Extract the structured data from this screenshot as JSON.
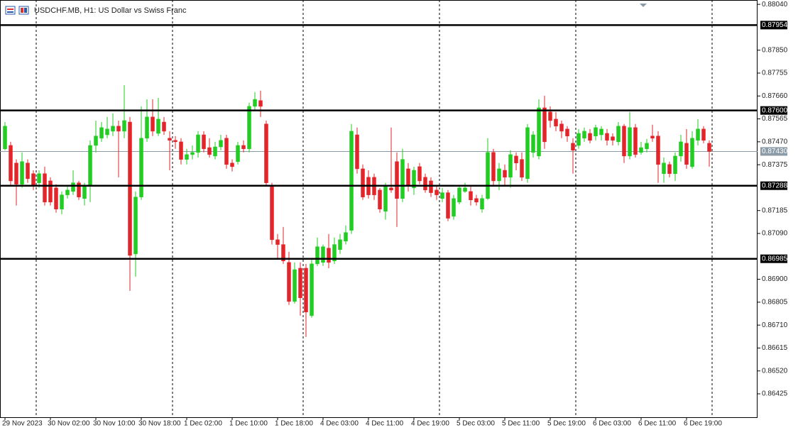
{
  "chart_data": {
    "type": "candlestick",
    "title": "USDCHF.MB, H1:  US Dollar vs Swiss Franc",
    "categories": [
      "29 Nov 2023",
      null,
      null,
      null,
      null,
      null,
      null,
      null,
      "30 Nov 02:00",
      null,
      null,
      null,
      null,
      null,
      null,
      null,
      "30 Nov 10:00",
      null,
      null,
      null,
      null,
      null,
      null,
      null,
      "30 Nov 18:00",
      null,
      null,
      null,
      null,
      null,
      null,
      null,
      "1 Dec 02:00",
      null,
      null,
      null,
      null,
      null,
      null,
      null,
      "1 Dec 10:00",
      null,
      null,
      null,
      null,
      null,
      null,
      null,
      "1 Dec 18:00",
      null,
      null,
      null,
      null,
      null,
      null,
      null,
      "4 Dec 03:00",
      null,
      null,
      null,
      null,
      null,
      null,
      null,
      "4 Dec 11:00",
      null,
      null,
      null,
      null,
      null,
      null,
      null,
      "4 Dec 19:00",
      null,
      null,
      null,
      null,
      null,
      null,
      null,
      "5 Dec 03:00",
      null,
      null,
      null,
      null,
      null,
      null,
      null,
      "5 Dec 11:00",
      null,
      null,
      null,
      null,
      null,
      null,
      null,
      "5 Dec 19:00",
      null,
      null,
      null,
      null,
      null,
      null,
      null,
      "6 Dec 03:00",
      null,
      null,
      null,
      null,
      null,
      null,
      null,
      "6 Dec 11:00",
      null,
      null,
      null,
      null,
      null,
      null,
      null,
      "6 Dec 19:00",
      null,
      null,
      null,
      null
    ],
    "open": [
      0.87441,
      0.87455,
      0.87382,
      0.87294,
      0.87382,
      0.87338,
      0.873,
      0.87338,
      0.87308,
      0.87279,
      0.87191,
      0.8725,
      0.87264,
      0.873,
      0.87235,
      0.87288,
      0.87455,
      0.87485,
      0.87499,
      0.87514,
      0.87535,
      0.87514,
      0.87552,
      0.87005,
      0.87241,
      0.87485,
      0.87573,
      0.87505,
      0.87552,
      0.87485,
      0.87476,
      0.8747,
      0.87397,
      0.87417,
      0.87426,
      0.87499,
      0.87446,
      0.87411,
      0.87449,
      0.87485,
      0.87382,
      0.87388,
      0.87455,
      0.87441,
      0.87617,
      0.87641,
      0.87544,
      0.87288,
      0.87064,
      0.87044,
      0.8697,
      0.86808,
      0.86946,
      0.86946,
      0.86749,
      0.86964,
      0.8697,
      0.87029,
      0.86976,
      0.87023,
      0.87058,
      0.87103,
      0.87499,
      0.87358,
      0.87323,
      0.87323,
      0.8727,
      0.87182,
      0.87279,
      0.87388,
      0.87235,
      0.87358,
      0.87279,
      0.87367,
      0.87323,
      0.87308,
      0.8727,
      0.87235,
      0.87259,
      0.87161,
      0.8722,
      0.87264,
      0.87264,
      0.87235,
      0.87191,
      0.87235,
      0.87426,
      0.87308,
      0.87352,
      0.87323,
      0.87411,
      0.87397,
      0.87317,
      0.87426,
      0.87411,
      0.87611,
      0.87594,
      0.87564,
      0.87544,
      0.87523,
      0.87464,
      0.87455,
      0.87485,
      0.87505,
      0.87494,
      0.87499,
      0.87505,
      0.87491,
      0.8747,
      0.87535,
      0.87411,
      0.87529,
      0.87426,
      0.87441,
      0.87494,
      0.87494,
      0.87338,
      0.87376,
      0.87338,
      0.87411,
      0.87464,
      0.87367,
      0.87476,
      0.87523,
      0.87464
    ],
    "high": [
      0.87552,
      0.8747,
      0.87397,
      0.87426,
      0.87397,
      0.87352,
      0.87352,
      0.87367,
      0.87323,
      0.87294,
      0.87264,
      0.87288,
      0.87352,
      0.87308,
      0.873,
      0.87476,
      0.87558,
      0.87552,
      0.87573,
      0.87588,
      0.87558,
      0.87705,
      0.87573,
      0.87264,
      0.87617,
      0.87646,
      0.87646,
      0.87652,
      0.87573,
      0.87514,
      0.87494,
      0.87485,
      0.87441,
      0.87455,
      0.87514,
      0.87514,
      0.87485,
      0.8747,
      0.87499,
      0.87499,
      0.87397,
      0.8747,
      0.87476,
      0.87632,
      0.87676,
      0.87682,
      0.87558,
      0.873,
      0.87088,
      0.87117,
      0.87014,
      0.8697,
      0.8697,
      0.86964,
      0.86985,
      0.87073,
      0.87044,
      0.87088,
      0.87073,
      0.87088,
      0.87123,
      0.87544,
      0.87529,
      0.87376,
      0.87352,
      0.87338,
      0.87279,
      0.873,
      0.87529,
      0.87426,
      0.87441,
      0.87382,
      0.87367,
      0.87382,
      0.87338,
      0.87323,
      0.87288,
      0.87279,
      0.8727,
      0.8725,
      0.87288,
      0.873,
      0.87288,
      0.8725,
      0.8725,
      0.87485,
      0.87441,
      0.87382,
      0.87376,
      0.87435,
      0.87426,
      0.87426,
      0.87544,
      0.87514,
      0.87646,
      0.87661,
      0.87617,
      0.87594,
      0.87558,
      0.87535,
      0.87485,
      0.87523,
      0.87529,
      0.87523,
      0.87541,
      0.87535,
      0.87523,
      0.87505,
      0.87552,
      0.87544,
      0.87594,
      0.87544,
      0.8747,
      0.87482,
      0.87541,
      0.87514,
      0.87405,
      0.87388,
      0.87426,
      0.87499,
      0.87523,
      0.87514,
      0.87564,
      0.87535,
      0.87476
    ],
    "low": [
      0.87435,
      0.87288,
      0.87206,
      0.87279,
      0.873,
      0.8727,
      0.87279,
      0.87206,
      0.87206,
      0.87176,
      0.8717,
      0.87235,
      0.8725,
      0.87229,
      0.87206,
      0.8722,
      0.87426,
      0.8747,
      0.87485,
      0.87494,
      0.87323,
      0.87485,
      0.86852,
      0.86911,
      0.87229,
      0.8747,
      0.87494,
      0.87494,
      0.87499,
      0.87352,
      0.87441,
      0.87376,
      0.87376,
      0.87397,
      0.87405,
      0.87426,
      0.87405,
      0.87397,
      0.87435,
      0.87358,
      0.87347,
      0.87376,
      0.87426,
      0.87426,
      0.87602,
      0.87573,
      0.87288,
      0.87044,
      0.86985,
      0.86964,
      0.86794,
      0.86799,
      0.86749,
      0.86661,
      0.86741,
      0.86955,
      0.86955,
      0.86946,
      0.86964,
      0.87005,
      0.87044,
      0.87088,
      0.87338,
      0.87229,
      0.87235,
      0.87229,
      0.87176,
      0.87147,
      0.87259,
      0.87117,
      0.8722,
      0.87264,
      0.8725,
      0.87294,
      0.87259,
      0.87241,
      0.87229,
      0.8722,
      0.87141,
      0.87147,
      0.87211,
      0.87259,
      0.87206,
      0.87206,
      0.87176,
      0.87229,
      0.87288,
      0.8727,
      0.87288,
      0.87279,
      0.87352,
      0.87308,
      0.873,
      0.87405,
      0.87397,
      0.87441,
      0.87529,
      0.87514,
      0.87485,
      0.8747,
      0.87338,
      0.87441,
      0.8747,
      0.87464,
      0.87476,
      0.87476,
      0.87455,
      0.87455,
      0.87455,
      0.87382,
      0.87397,
      0.87405,
      0.87417,
      0.87426,
      0.8747,
      0.873,
      0.873,
      0.87323,
      0.87308,
      0.87388,
      0.87358,
      0.87358,
      0.87455,
      0.87464,
      0.87367
    ],
    "close": [
      0.87535,
      0.87308,
      0.87294,
      0.87388,
      0.87317,
      0.87288,
      0.87338,
      0.8722,
      0.8722,
      0.87191,
      0.8725,
      0.8727,
      0.873,
      0.87241,
      0.87288,
      0.87455,
      0.87494,
      0.87529,
      0.87523,
      0.87535,
      0.87514,
      0.87558,
      0.86999,
      0.87241,
      0.87485,
      0.87573,
      0.87514,
      0.87564,
      0.87514,
      0.87476,
      0.8747,
      0.87397,
      0.87417,
      0.87426,
      0.87499,
      0.87441,
      0.87417,
      0.87449,
      0.87476,
      0.87376,
      0.87367,
      0.87455,
      0.87441,
      0.87617,
      0.87646,
      0.87617,
      0.873,
      0.87064,
      0.87044,
      0.86976,
      0.86808,
      0.8694,
      0.86823,
      0.86764,
      0.86964,
      0.87035,
      0.87035,
      0.8697,
      0.87044,
      0.87064,
      0.87094,
      0.87514,
      0.87358,
      0.87241,
      0.8725,
      0.8725,
      0.87191,
      0.87288,
      0.8727,
      0.87235,
      0.87397,
      0.87288,
      0.87352,
      0.87308,
      0.8727,
      0.87259,
      0.8725,
      0.87259,
      0.87153,
      0.87235,
      0.87279,
      0.87279,
      0.87229,
      0.8722,
      0.87235,
      0.87426,
      0.87308,
      0.87358,
      0.87323,
      0.87417,
      0.87382,
      0.87323,
      0.87529,
      0.87499,
      0.87611,
      0.8747,
      0.87558,
      0.87535,
      0.87514,
      0.87494,
      0.87435,
      0.87505,
      0.87514,
      0.87476,
      0.87529,
      0.87523,
      0.87476,
      0.87476,
      0.87535,
      0.87411,
      0.87529,
      0.87417,
      0.87446,
      0.87464,
      0.87485,
      0.87376,
      0.87382,
      0.87338,
      0.87411,
      0.8747,
      0.87376,
      0.87485,
      0.87523,
      0.87476,
      0.8743
    ],
    "up_color": "#22cc22",
    "down_color": "#e0262b",
    "ylim": [
      0.86328,
      0.88058
    ],
    "yticks": [
      {
        "value": 0.8804,
        "label": "0.88040"
      },
      {
        "value": 0.8785,
        "label": "0.87850"
      },
      {
        "value": 0.87755,
        "label": "0.87755"
      },
      {
        "value": 0.8766,
        "label": "0.87660"
      },
      {
        "value": 0.87565,
        "label": "0.87565"
      },
      {
        "value": 0.8747,
        "label": "0.87470"
      },
      {
        "value": 0.87375,
        "label": "0.87375"
      },
      {
        "value": 0.87185,
        "label": "0.87185"
      },
      {
        "value": 0.8709,
        "label": "0.87090"
      },
      {
        "value": 0.869,
        "label": "0.86900"
      },
      {
        "value": 0.86805,
        "label": "0.86805"
      },
      {
        "value": 0.8671,
        "label": "0.86710"
      },
      {
        "value": 0.86615,
        "label": "0.86615"
      },
      {
        "value": 0.8652,
        "label": "0.86520"
      },
      {
        "value": 0.86425,
        "label": "0.86425"
      }
    ],
    "levels": [
      {
        "value": 0.87954,
        "label": "0.87954"
      },
      {
        "value": 0.876,
        "label": "0.87600"
      },
      {
        "value": 0.87288,
        "label": "0.87288"
      },
      {
        "value": 0.86985,
        "label": "0.86985"
      }
    ],
    "level_color": "#000000",
    "current_price": {
      "value": 0.8743,
      "label": "0.87430"
    },
    "current_color": "#8a9aa6",
    "grid": true
  }
}
